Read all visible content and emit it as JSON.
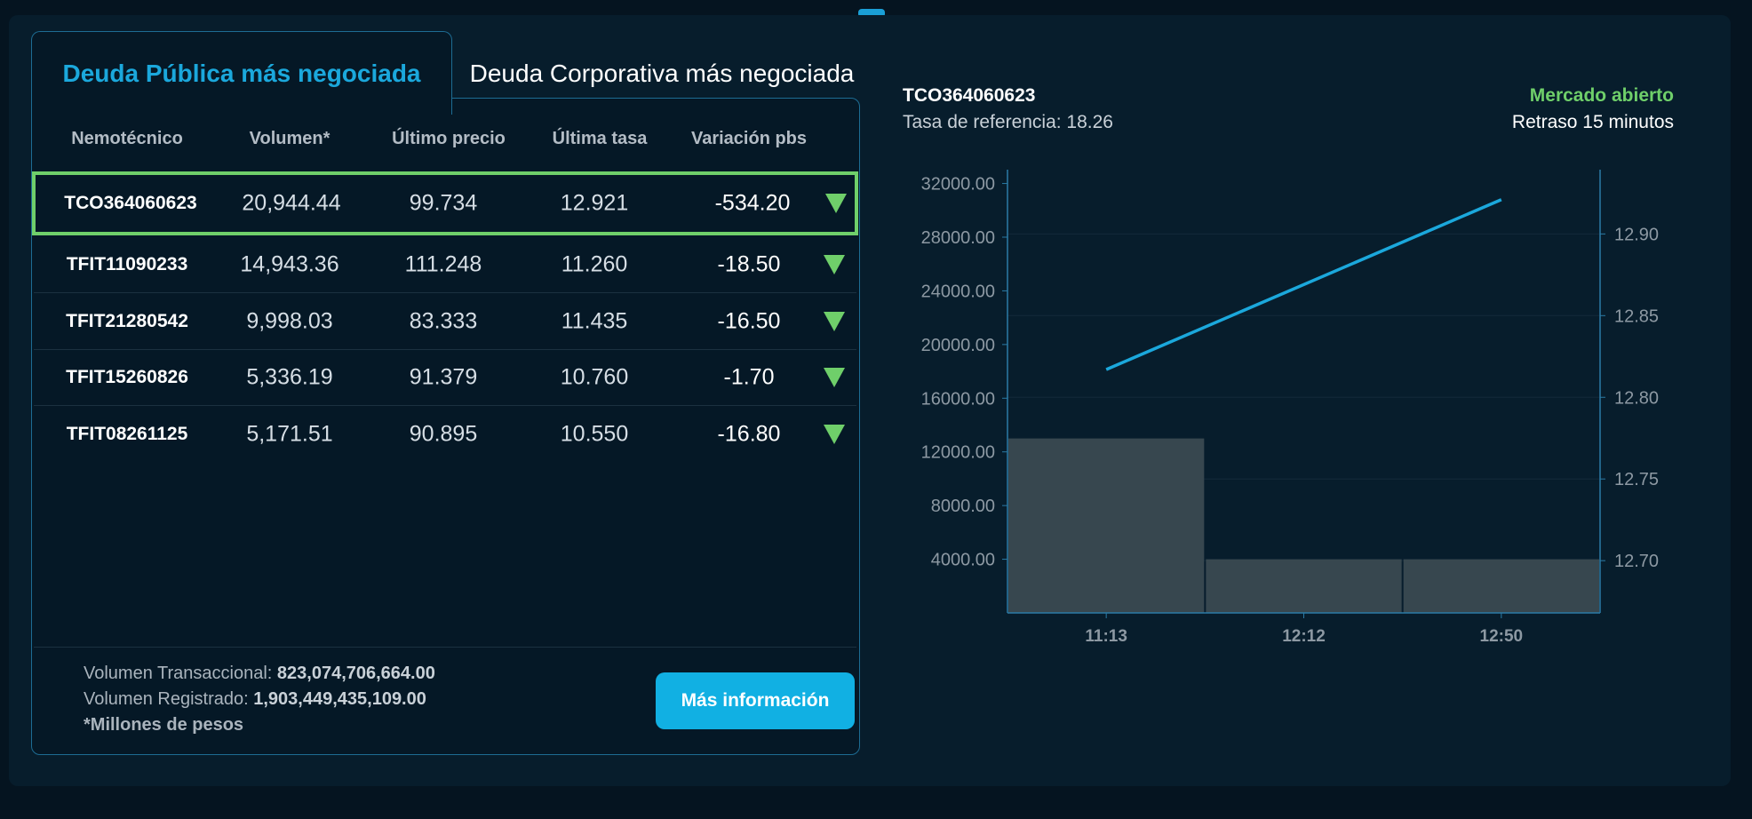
{
  "tabs": {
    "active_label": "Deuda Pública más negociada",
    "inactive_label": "Deuda Corporativa más negociada"
  },
  "table": {
    "headers": [
      "Nemotécnico",
      "Volumen*",
      "Último precio",
      "Última tasa",
      "Variación pbs"
    ],
    "rows": [
      {
        "mnemonic": "TCO364060623",
        "volume": "20,944.44",
        "price": "99.734",
        "rate": "12.921",
        "variation": "-534.20",
        "trend": "down"
      },
      {
        "mnemonic": "TFIT11090233",
        "volume": "14,943.36",
        "price": "111.248",
        "rate": "11.260",
        "variation": "-18.50",
        "trend": "down"
      },
      {
        "mnemonic": "TFIT21280542",
        "volume": "9,998.03",
        "price": "83.333",
        "rate": "11.435",
        "variation": "-16.50",
        "trend": "down"
      },
      {
        "mnemonic": "TFIT15260826",
        "volume": "5,336.19",
        "price": "91.379",
        "rate": "10.760",
        "variation": "-1.70",
        "trend": "down"
      },
      {
        "mnemonic": "TFIT08261125",
        "volume": "5,171.51",
        "price": "90.895",
        "rate": "10.550",
        "variation": "-16.80",
        "trend": "down"
      }
    ],
    "selected_index": 0,
    "down_color": "#6fcf6a"
  },
  "footer": {
    "transactional_label": "Volumen Transaccional: ",
    "transactional_value": "823,074,706,664.00",
    "registered_label": "Volumen Registrado: ",
    "registered_value": "1,903,449,435,109.00",
    "note": "*Millones de pesos",
    "more_button": "Más información"
  },
  "detail": {
    "symbol": "TCO364060623",
    "reference_rate": "Tasa de referencia: 18.26",
    "market_status": "Mercado abierto",
    "market_status_color": "#6fcf6a",
    "delay": "Retraso 15 minutos"
  },
  "chart_data": {
    "type": "bar",
    "categories": [
      "11:13",
      "12:12",
      "12:50"
    ],
    "series": [
      {
        "type": "bar",
        "axis": "left",
        "values": [
          13000,
          4000,
          4000
        ]
      },
      {
        "type": "line",
        "axis": "right",
        "values": [
          12.817,
          null,
          12.921
        ]
      }
    ],
    "left_axis": {
      "ticks": [
        "4000.00",
        "8000.00",
        "12000.00",
        "16000.00",
        "20000.00",
        "24000.00",
        "28000.00",
        "32000.00"
      ],
      "range": [
        0,
        32500
      ]
    },
    "right_axis": {
      "ticks": [
        "12.70",
        "12.75",
        "12.80",
        "12.85",
        "12.90"
      ],
      "range": [
        12.668,
        12.935
      ]
    },
    "grid": true,
    "colors": {
      "bar": "#37474f",
      "line": "#1ba8dc",
      "axis": "#2b7ba6",
      "tick": "#8d99a3"
    }
  }
}
